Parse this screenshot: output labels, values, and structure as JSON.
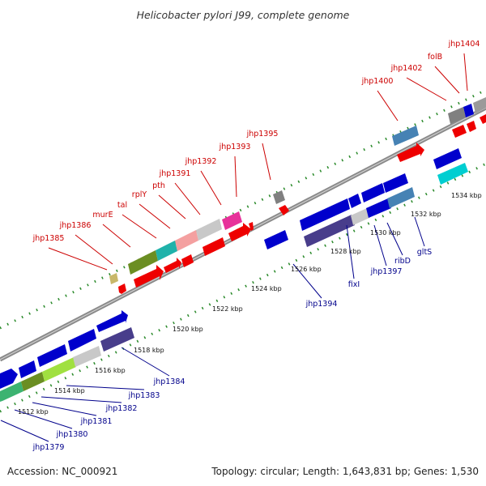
{
  "title": "Helicobacter pylori J99, complete genome",
  "footer": {
    "accession": "Accession: NC_000921",
    "summary": "Topology: circular; Length: 1,643,831 bp; Genes: 1,530"
  },
  "colors": {
    "label_upper": "#cc0000",
    "label_lower": "#00008b",
    "tick_dots": "#2a8a2a",
    "backbone": "#8a8a8a"
  },
  "scale_labels": [
    {
      "kbp": 1512,
      "text": "1512 kbp"
    },
    {
      "kbp": 1514,
      "text": "1514 kbp"
    },
    {
      "kbp": 1516,
      "text": "1516 kbp"
    },
    {
      "kbp": 1518,
      "text": "1518 kbp"
    },
    {
      "kbp": 1520,
      "text": "1520 kbp"
    },
    {
      "kbp": 1522,
      "text": "1522 kbp"
    },
    {
      "kbp": 1524,
      "text": "1524 kbp"
    },
    {
      "kbp": 1526,
      "text": "1526 kbp"
    },
    {
      "kbp": 1528,
      "text": "1528 kbp"
    },
    {
      "kbp": 1530,
      "text": "1530 kbp"
    },
    {
      "kbp": 1532,
      "text": "1532 kbp"
    },
    {
      "kbp": 1534,
      "text": "1534 kbp"
    }
  ],
  "genes_upper": [
    {
      "name": "jhp1385"
    },
    {
      "name": "jhp1386"
    },
    {
      "name": "murE"
    },
    {
      "name": "tal"
    },
    {
      "name": "rplY"
    },
    {
      "name": "pth"
    },
    {
      "name": "jhp1391"
    },
    {
      "name": "jhp1392"
    },
    {
      "name": "jhp1393"
    },
    {
      "name": "jhp1395"
    },
    {
      "name": "jhp1400"
    },
    {
      "name": "jhp1402"
    },
    {
      "name": "folB"
    },
    {
      "name": "jhp1404"
    }
  ],
  "genes_lower": [
    {
      "name": "jhp1379"
    },
    {
      "name": "jhp1380"
    },
    {
      "name": "jhp1381"
    },
    {
      "name": "jhp1382"
    },
    {
      "name": "jhp1383"
    },
    {
      "name": "jhp1384"
    },
    {
      "name": "jhp1394"
    },
    {
      "name": "fixI"
    },
    {
      "name": "jhp1397"
    },
    {
      "name": "ribD"
    },
    {
      "name": "gltS"
    }
  ]
}
